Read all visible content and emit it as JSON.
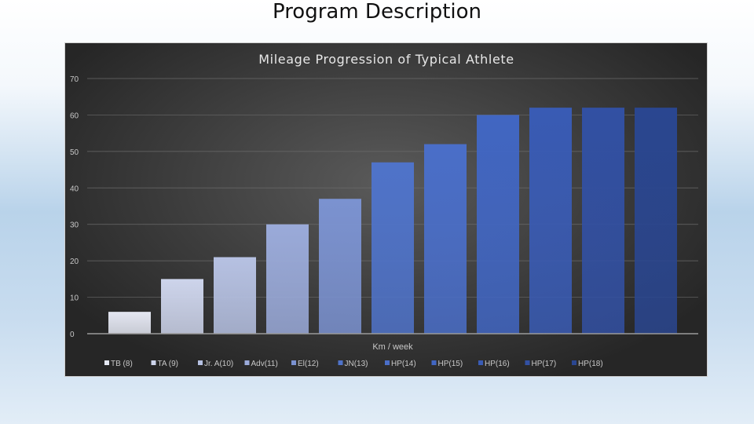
{
  "slide": {
    "title": "Program Description"
  },
  "chart_data": {
    "type": "bar",
    "title": "Mileage Progression of Typical Athlete",
    "xlabel": "Km / week",
    "ylabel": "",
    "ylim": [
      0,
      70
    ],
    "yticks": [
      0,
      10,
      20,
      30,
      40,
      50,
      60,
      70
    ],
    "grid": true,
    "legend_position": "bottom",
    "series": [
      {
        "name": "TB (8)",
        "value": 6,
        "color": "#e4e7f2"
      },
      {
        "name": "TA (9)",
        "value": 15,
        "color": "#cdd4eb"
      },
      {
        "name": "Jr. A(10)",
        "value": 21,
        "color": "#b6c1e2"
      },
      {
        "name": "Adv(11)",
        "value": 30,
        "color": "#9aaad9"
      },
      {
        "name": "El(12)",
        "value": 37,
        "color": "#7b92d0"
      },
      {
        "name": "JN(13)",
        "value": 47,
        "color": "#4f73c9"
      },
      {
        "name": "HP(14)",
        "value": 52,
        "color": "#4a6ec8"
      },
      {
        "name": "HP(15)",
        "value": 60,
        "color": "#4166c2"
      },
      {
        "name": "HP(16)",
        "value": 62,
        "color": "#395bb4"
      },
      {
        "name": "HP(17)",
        "value": 62,
        "color": "#3250a3"
      },
      {
        "name": "HP(18)",
        "value": 62,
        "color": "#2a4690"
      }
    ]
  }
}
